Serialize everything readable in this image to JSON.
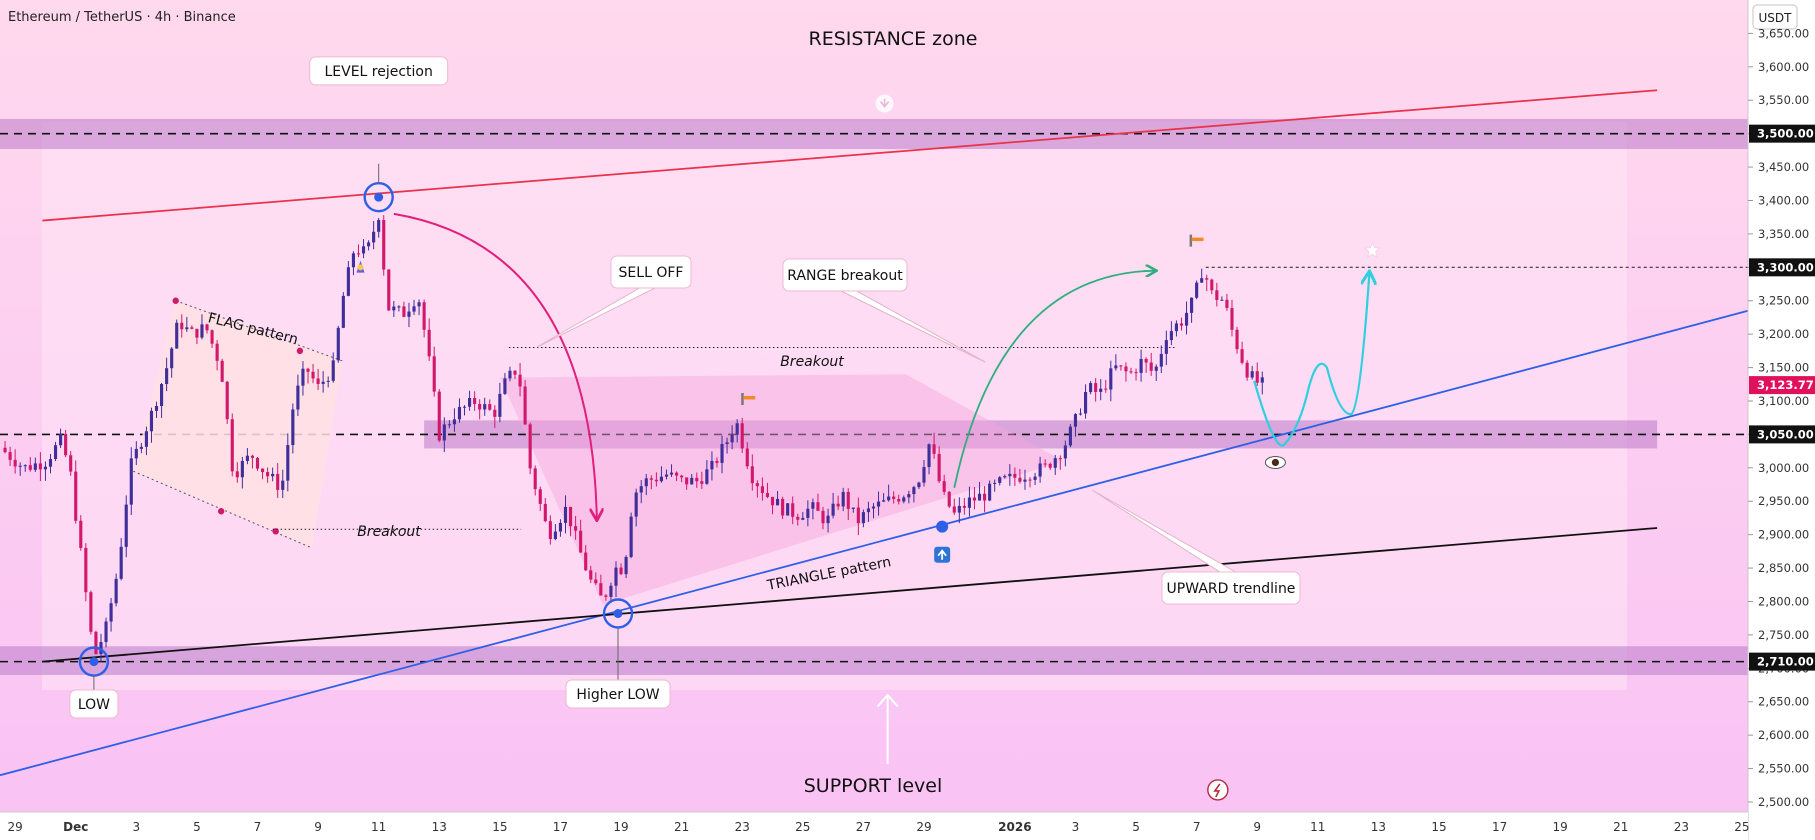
{
  "header": {
    "symbol": "Ethereum / TetherUS · 4h · Binance",
    "currency": "USDT"
  },
  "colors": {
    "candle_up": "#3f2f9a",
    "candle_down": "#d2186a",
    "zone": "#b97ac8",
    "resistance_line": "#e8334a",
    "trendline": "#2f5fe6",
    "support_line": "#111111",
    "arrow_magenta": "#e0207c",
    "arrow_green": "#2fae7f",
    "projection_cyan": "#2ed0e0",
    "last_price_bg": "#e0105c"
  },
  "chart_data": {
    "type": "candlestick",
    "y_axis": {
      "ticks": [
        2500,
        2550,
        2600,
        2650,
        2700,
        2750,
        2800,
        2850,
        2900,
        2950,
        3000,
        3050,
        3100,
        3150,
        3200,
        3250,
        3300,
        3350,
        3400,
        3450,
        3500,
        3550,
        3600,
        3650
      ],
      "tick_labels": [
        "2,500.00",
        "2,550.00",
        "2,600.00",
        "2,650.00",
        "2,700.00",
        "2,750.00",
        "2,800.00",
        "2,850.00",
        "2,900.00",
        "2,950.00",
        "3,000.00",
        "3,050.00",
        "3,100.00",
        "3,150.00",
        "3,200.00",
        "3,250.00",
        "3,300.00",
        "3,350.00",
        "3,400.00",
        "3,450.00",
        "3,500.00",
        "3,550.00",
        "3,600.00",
        "3,650.00"
      ],
      "range": [
        2485,
        3700
      ],
      "price_labels": [
        {
          "value": 3500,
          "text": "3,500.00",
          "style": "dark"
        },
        {
          "value": 3300,
          "text": "3,300.00",
          "style": "dark"
        },
        {
          "value": 3123.77,
          "text": "3,123.77",
          "style": "last"
        },
        {
          "value": 3050,
          "text": "3,050.00",
          "style": "dark"
        },
        {
          "value": 2710,
          "text": "2,710.00",
          "style": "dark"
        }
      ]
    },
    "x_axis": {
      "range": [
        -0.5,
        57.2
      ],
      "ticks": [
        {
          "d": 0,
          "label": "29"
        },
        {
          "d": 2,
          "label": "Dec"
        },
        {
          "d": 4,
          "label": "3"
        },
        {
          "d": 6,
          "label": "5"
        },
        {
          "d": 8,
          "label": "7"
        },
        {
          "d": 10,
          "label": "9"
        },
        {
          "d": 12,
          "label": "11"
        },
        {
          "d": 14,
          "label": "13"
        },
        {
          "d": 16,
          "label": "15"
        },
        {
          "d": 18,
          "label": "17"
        },
        {
          "d": 20,
          "label": "19"
        },
        {
          "d": 22,
          "label": "21"
        },
        {
          "d": 24,
          "label": "23"
        },
        {
          "d": 26,
          "label": "25"
        },
        {
          "d": 28,
          "label": "27"
        },
        {
          "d": 30,
          "label": "29"
        },
        {
          "d": 33,
          "label": "2026"
        },
        {
          "d": 35,
          "label": "3"
        },
        {
          "d": 37,
          "label": "5"
        },
        {
          "d": 39,
          "label": "7"
        },
        {
          "d": 41,
          "label": "9"
        },
        {
          "d": 43,
          "label": "11"
        },
        {
          "d": 45,
          "label": "13"
        },
        {
          "d": 47,
          "label": "15"
        },
        {
          "d": 49,
          "label": "17"
        },
        {
          "d": 51,
          "label": "19"
        },
        {
          "d": 53,
          "label": "21"
        },
        {
          "d": 55,
          "label": "23"
        },
        {
          "d": 57,
          "label": "25"
        }
      ]
    },
    "price_path": [
      [
        -0.5,
        3030
      ],
      [
        0.3,
        3000
      ],
      [
        1.0,
        3010
      ],
      [
        1.5,
        3040
      ],
      [
        1.8,
        3000
      ],
      [
        2.2,
        2860
      ],
      [
        2.6,
        2715
      ],
      [
        3.0,
        2760
      ],
      [
        3.4,
        2850
      ],
      [
        3.8,
        3000
      ],
      [
        4.5,
        3080
      ],
      [
        5.0,
        3150
      ],
      [
        5.4,
        3220
      ],
      [
        5.8,
        3200
      ],
      [
        6.3,
        3210
      ],
      [
        6.8,
        3150
      ],
      [
        7.2,
        2990
      ],
      [
        7.8,
        3020
      ],
      [
        8.3,
        2990
      ],
      [
        8.8,
        2970
      ],
      [
        9.2,
        3100
      ],
      [
        9.6,
        3150
      ],
      [
        10.0,
        3120
      ],
      [
        10.5,
        3150
      ],
      [
        10.8,
        3250
      ],
      [
        11.2,
        3330
      ],
      [
        11.6,
        3320
      ],
      [
        12.0,
        3380
      ],
      [
        12.3,
        3240
      ],
      [
        12.8,
        3230
      ],
      [
        13.3,
        3260
      ],
      [
        13.6,
        3180
      ],
      [
        14.0,
        3050
      ],
      [
        14.5,
        3080
      ],
      [
        15.2,
        3100
      ],
      [
        15.8,
        3080
      ],
      [
        16.2,
        3130
      ],
      [
        16.6,
        3150
      ],
      [
        17.0,
        3000
      ],
      [
        17.6,
        2900
      ],
      [
        18.2,
        2940
      ],
      [
        18.6,
        2880
      ],
      [
        19.0,
        2830
      ],
      [
        19.4,
        2800
      ],
      [
        19.8,
        2850
      ],
      [
        20.1,
        2850
      ],
      [
        20.4,
        2960
      ],
      [
        20.8,
        2980
      ],
      [
        21.5,
        2990
      ],
      [
        22.0,
        2980
      ],
      [
        22.5,
        2980
      ],
      [
        23.0,
        3000
      ],
      [
        23.5,
        3040
      ],
      [
        23.8,
        3070
      ],
      [
        24.3,
        2990
      ],
      [
        24.8,
        2960
      ],
      [
        25.3,
        2940
      ],
      [
        25.8,
        2930
      ],
      [
        26.3,
        2940
      ],
      [
        26.8,
        2920
      ],
      [
        27.3,
        2960
      ],
      [
        27.8,
        2920
      ],
      [
        28.3,
        2940
      ],
      [
        28.8,
        2950
      ],
      [
        29.3,
        2960
      ],
      [
        29.8,
        2980
      ],
      [
        30.2,
        3040
      ],
      [
        30.6,
        2960
      ],
      [
        31.0,
        2930
      ],
      [
        31.5,
        2950
      ],
      [
        32.0,
        2960
      ],
      [
        32.6,
        2980
      ],
      [
        33.3,
        2990
      ],
      [
        34.0,
        3000
      ],
      [
        34.6,
        3030
      ],
      [
        35.0,
        3070
      ],
      [
        35.4,
        3120
      ],
      [
        35.8,
        3110
      ],
      [
        36.3,
        3150
      ],
      [
        36.8,
        3140
      ],
      [
        37.2,
        3160
      ],
      [
        37.6,
        3140
      ],
      [
        38.0,
        3200
      ],
      [
        38.5,
        3220
      ],
      [
        38.9,
        3250
      ],
      [
        39.2,
        3300
      ],
      [
        39.5,
        3260
      ],
      [
        39.9,
        3250
      ],
      [
        40.2,
        3200
      ],
      [
        40.6,
        3150
      ],
      [
        40.9,
        3130
      ],
      [
        41.2,
        3124
      ]
    ],
    "levels": [
      {
        "name": "resistance",
        "value": 3500,
        "zone": [
          3477,
          3522
        ]
      },
      {
        "name": "breakout-level",
        "value": 3050,
        "zone": [
          3029,
          3071
        ]
      },
      {
        "name": "support",
        "value": 2710,
        "zone": [
          2690,
          2733
        ]
      },
      {
        "name": "high-line",
        "value": 3300
      }
    ],
    "annotations": {
      "title": "RESISTANCE zone",
      "level_rejection": "LEVEL rejection",
      "sell_off": "SELL OFF",
      "range_breakout": "RANGE breakout",
      "breakout_top": "Breakout",
      "breakout_left": "Breakout",
      "flag_pattern": "FLAG pattern",
      "triangle_pattern": "TRIANGLE pattern",
      "upward_trendline": "UPWARD trendline",
      "low": "LOW",
      "higher_low": "Higher LOW",
      "support_level": "SUPPORT level"
    }
  }
}
